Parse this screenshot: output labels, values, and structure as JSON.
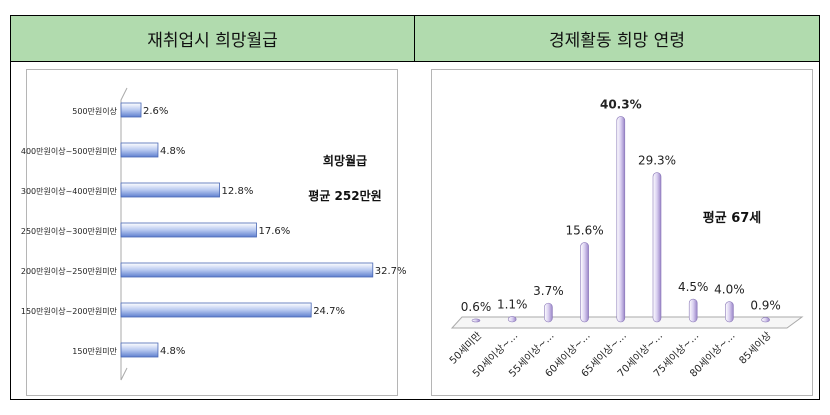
{
  "headers": {
    "left": "재취업시 희망월급",
    "right": "경제활동 희망 연령"
  },
  "chart_data": [
    {
      "type": "bar",
      "orientation": "horizontal",
      "categories": [
        "500만원이상",
        "400만원이상~500만원미만",
        "300만원이상~400만원미만",
        "250만원이상~300만원미만",
        "200만원이상~250만원미만",
        "150만원이상~200만원미만",
        "150만원미만"
      ],
      "values": [
        2.6,
        4.8,
        12.8,
        17.6,
        32.7,
        24.7,
        4.8
      ],
      "labels": [
        "2.6%",
        "4.8%",
        "12.8%",
        "17.6%",
        "32.7%",
        "24.7%",
        "4.8%"
      ],
      "annotation": [
        "희망월급",
        "평균 252만원"
      ],
      "color": "#7f9fe0"
    },
    {
      "type": "bar",
      "orientation": "vertical",
      "categories": [
        "50세미만",
        "50세이상~…",
        "55세이상~…",
        "60세이상~…",
        "65세이상~…",
        "70세이상~…",
        "75세이상~…",
        "80세이상~…",
        "85세이상"
      ],
      "values": [
        0.6,
        1.1,
        3.7,
        15.6,
        40.3,
        29.3,
        4.5,
        4.0,
        0.9
      ],
      "labels": [
        "0.6%",
        "1.1%",
        "3.7%",
        "15.6%",
        "40.3%",
        "29.3%",
        "4.5%",
        "4.0%",
        "0.9%"
      ],
      "annotation": "평균 67세",
      "color": "#b9a9dc"
    }
  ]
}
